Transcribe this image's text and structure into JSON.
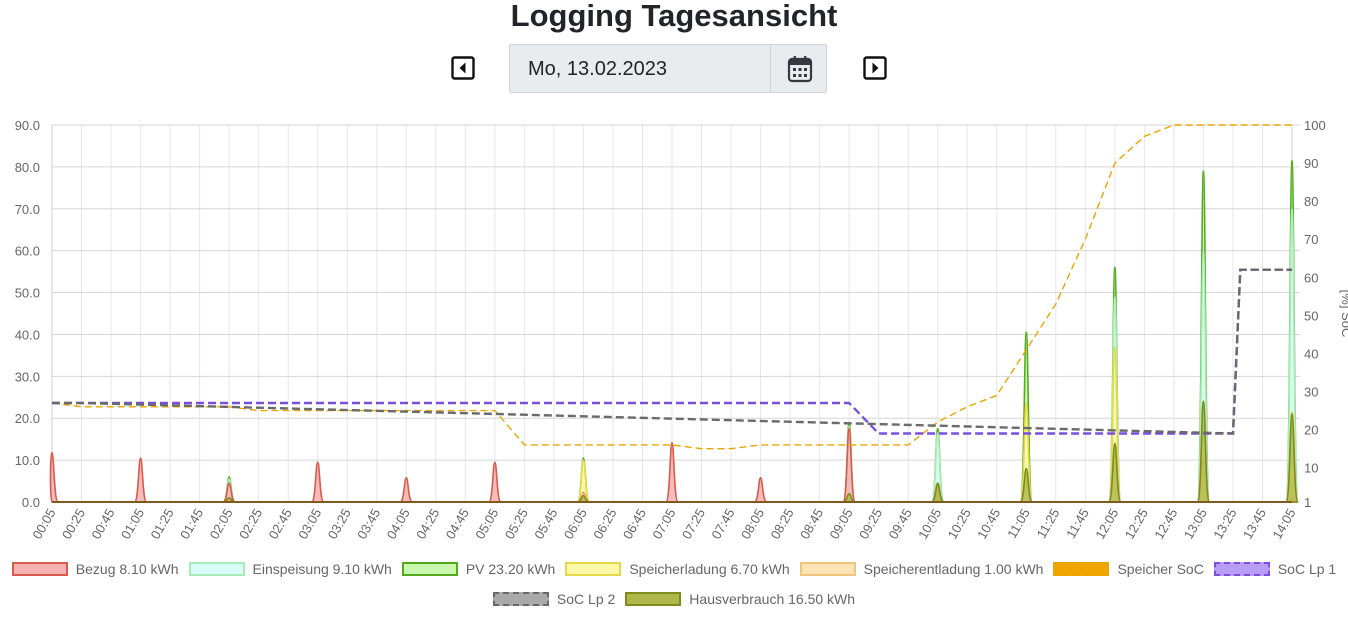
{
  "header": {
    "title": "Logging Tagesansicht",
    "date_value": "Mo, 13.02.2023",
    "prev_icon": "caret-left-square-icon",
    "next_icon": "caret-right-square-icon",
    "calendar_icon": "calendar-icon"
  },
  "chart_data": {
    "type": "area",
    "x_start": "00:05",
    "x_end": "14:05",
    "x_tick_labels": [
      "00:05",
      "00:25",
      "00:45",
      "01:05",
      "01:25",
      "01:45",
      "02:05",
      "02:25",
      "02:45",
      "03:05",
      "03:25",
      "03:45",
      "04:05",
      "04:25",
      "04:45",
      "05:05",
      "05:25",
      "05:45",
      "06:05",
      "06:25",
      "06:45",
      "07:05",
      "07:25",
      "07:45",
      "08:05",
      "08:25",
      "08:45",
      "09:05",
      "09:25",
      "09:45",
      "10:05",
      "10:25",
      "10:45",
      "11:05",
      "11:25",
      "11:45",
      "12:05",
      "12:25",
      "12:45",
      "13:05",
      "13:25",
      "13:45",
      "14:05"
    ],
    "y_left_ticks": [
      "0.0",
      "10.0",
      "20.0",
      "30.0",
      "40.0",
      "50.0",
      "60.0",
      "70.0",
      "80.0",
      "90.0"
    ],
    "y_left_range": [
      0,
      90
    ],
    "y_right_ticks": [
      "1",
      "10",
      "20",
      "30",
      "40",
      "50",
      "60",
      "70",
      "80",
      "90",
      "100"
    ],
    "y_right_range": [
      1,
      100
    ],
    "y_right_label": "[%] SoC",
    "grid": true,
    "legend_position": "bottom",
    "peaks": [
      {
        "series": "Bezug",
        "points": [
          [
            "00:05",
            11.8
          ],
          [
            "01:05",
            10.5
          ],
          [
            "02:05",
            4.5
          ],
          [
            "03:05",
            9.5
          ],
          [
            "04:05",
            5.8
          ],
          [
            "05:05",
            9.5
          ],
          [
            "06:05",
            2.2
          ],
          [
            "07:05",
            14.2
          ],
          [
            "08:05",
            5.8
          ],
          [
            "09:05",
            17.5
          ],
          [
            "10:05",
            3.8
          ]
        ]
      },
      {
        "series": "Einspeisung",
        "points": [
          [
            "02:05",
            5.5
          ],
          [
            "09:05",
            18.0
          ],
          [
            "10:05",
            16.5
          ],
          [
            "11:05",
            22.0
          ],
          [
            "12:05",
            49.0
          ],
          [
            "13:05",
            60.0
          ],
          [
            "14:05",
            70.0
          ]
        ]
      },
      {
        "series": "PV",
        "points": [
          [
            "02:05",
            6.0
          ],
          [
            "06:05",
            10.5
          ],
          [
            "09:05",
            19.0
          ],
          [
            "10:05",
            17.5
          ],
          [
            "11:05",
            40.5
          ],
          [
            "12:05",
            56.0
          ],
          [
            "13:05",
            79.0
          ],
          [
            "14:05",
            81.5
          ]
        ]
      },
      {
        "series": "Speicherladung",
        "points": [
          [
            "06:05",
            10.0
          ],
          [
            "11:05",
            23.5
          ],
          [
            "12:05",
            37.0
          ],
          [
            "13:05",
            24.0
          ],
          [
            "14:05",
            21.5
          ]
        ]
      },
      {
        "series": "Speicherentladung",
        "points": [
          [
            "06:05",
            2.0
          ],
          [
            "13:05",
            10.5
          ],
          [
            "14:05",
            1.0
          ]
        ]
      },
      {
        "series": "Hausverbrauch",
        "points": [
          [
            "02:05",
            1.0
          ],
          [
            "06:05",
            1.5
          ],
          [
            "09:05",
            2.0
          ],
          [
            "10:05",
            4.5
          ],
          [
            "11:05",
            8.0
          ],
          [
            "12:05",
            14.0
          ],
          [
            "13:05",
            24.0
          ],
          [
            "14:05",
            21.0
          ]
        ]
      }
    ],
    "soc_series": [
      {
        "series": "Speicher SoC",
        "axis": "right",
        "points": [
          [
            "00:05",
            27
          ],
          [
            "00:25",
            26
          ],
          [
            "02:05",
            26
          ],
          [
            "02:25",
            25
          ],
          [
            "05:05",
            25
          ],
          [
            "05:25",
            16
          ],
          [
            "06:05",
            16
          ],
          [
            "07:05",
            16
          ],
          [
            "07:25",
            15
          ],
          [
            "07:45",
            15
          ],
          [
            "08:05",
            16
          ],
          [
            "09:45",
            16
          ],
          [
            "10:05",
            22
          ],
          [
            "10:25",
            26
          ],
          [
            "10:45",
            29
          ],
          [
            "11:05",
            41
          ],
          [
            "11:25",
            53
          ],
          [
            "11:45",
            70
          ],
          [
            "12:05",
            90
          ],
          [
            "12:25",
            97
          ],
          [
            "12:45",
            100
          ],
          [
            "14:05",
            100
          ]
        ]
      },
      {
        "series": "SoC Lp 1",
        "axis": "right",
        "points": [
          [
            "00:05",
            27
          ],
          [
            "09:05",
            27
          ],
          [
            "09:25",
            19
          ],
          [
            "13:25",
            19
          ],
          [
            "13:30",
            62
          ],
          [
            "14:05",
            62
          ]
        ]
      },
      {
        "series": "SoC Lp 2",
        "axis": "right",
        "points": [
          [
            "00:05",
            27
          ],
          [
            "00:25",
            27
          ],
          [
            "13:25",
            19
          ],
          [
            "13:30",
            62
          ],
          [
            "14:05",
            62
          ]
        ]
      }
    ],
    "legend": [
      {
        "name": "Bezug 8.10 kWh",
        "fill": "#f4b2b2",
        "stroke": "#d85a4a",
        "dashed": false
      },
      {
        "name": "Einspeisung 9.10 kWh",
        "fill": "#d9fbfb",
        "stroke": "#a6ecb4",
        "dashed": false
      },
      {
        "name": "PV 23.20 kWh",
        "fill": "#c8f7ad",
        "stroke": "#54aa1d",
        "dashed": false
      },
      {
        "name": "Speicherladung 6.70 kWh",
        "fill": "#fbf9a8",
        "stroke": "#e5d949",
        "dashed": false
      },
      {
        "name": "Speicherentladung 1.00 kWh",
        "fill": "#fae3b4",
        "stroke": "#efc57c",
        "dashed": false
      },
      {
        "name": "Speicher SoC",
        "fill": "#f0a500",
        "stroke": "#e9a500",
        "dashed": true
      },
      {
        "name": "SoC Lp 1",
        "fill": "#b89cf5",
        "stroke": "#7a4fe0",
        "dashed": true
      },
      {
        "name": "SoC Lp 2",
        "fill": "#a9a9a9",
        "stroke": "#6a6a6a",
        "dashed": true
      },
      {
        "name": "Hausverbrauch 16.50 kWh",
        "fill": "#b0b84a",
        "stroke": "#7f8a1f",
        "dashed": false
      }
    ]
  }
}
